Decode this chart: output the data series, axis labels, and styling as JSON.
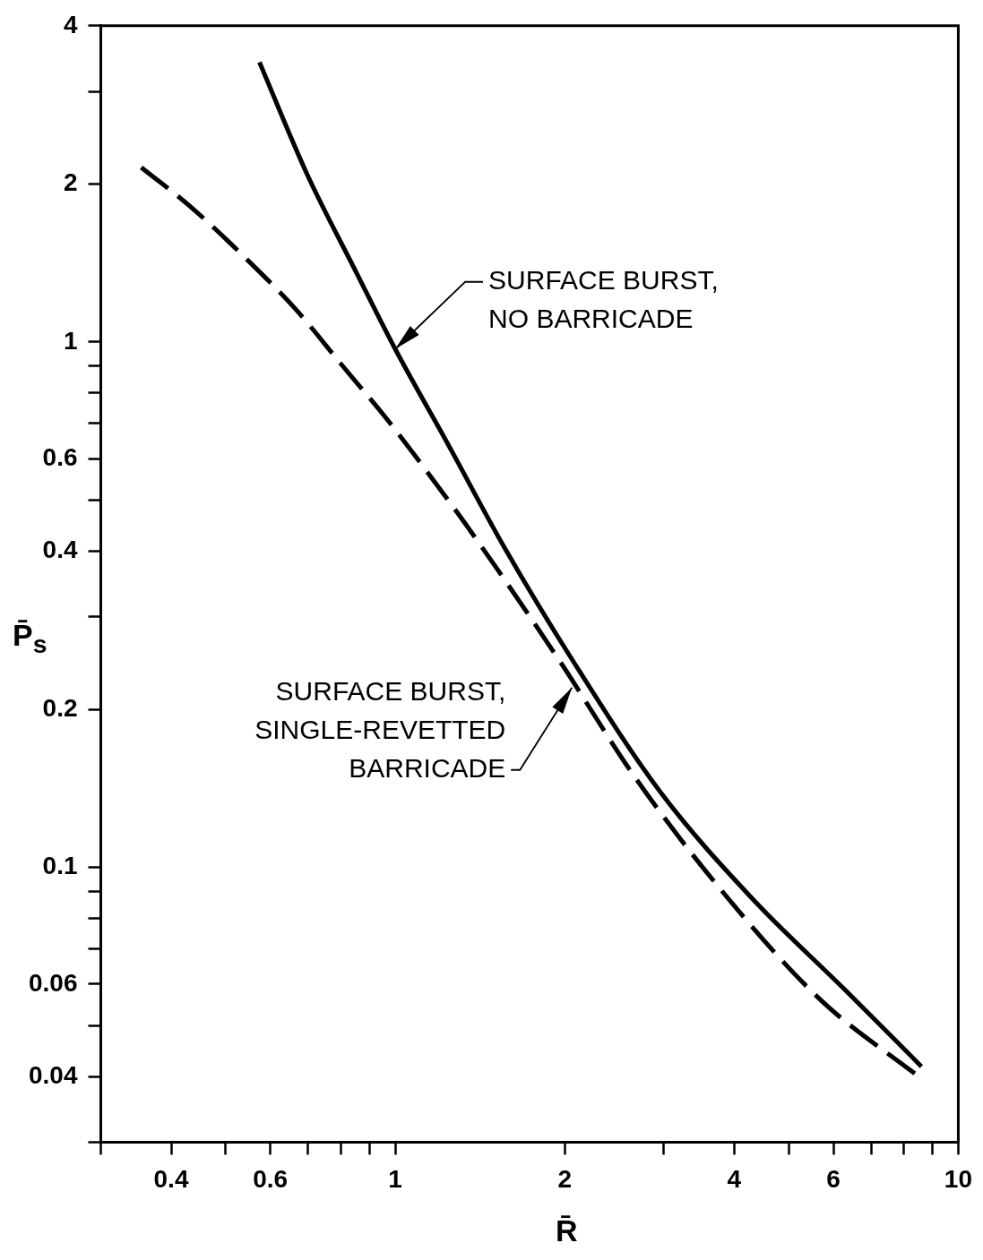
{
  "chart_data": {
    "type": "line",
    "xlabel": "R̄",
    "ylabel": "P̄$_{s}$",
    "log": "xy",
    "grid": false,
    "legend": false,
    "marker": "none",
    "xlim": [
      0.3,
      10
    ],
    "ylim": [
      0.03,
      4
    ],
    "xticks": [
      {
        "value": 0.3,
        "label": null
      },
      {
        "value": 0.4,
        "label": "0.4"
      },
      {
        "value": 0.5,
        "label": null
      },
      {
        "value": 0.6,
        "label": "0.6"
      },
      {
        "value": 0.7,
        "label": null
      },
      {
        "value": 0.8,
        "label": null
      },
      {
        "value": 0.9,
        "label": null
      },
      1,
      2,
      {
        "value": 3,
        "label": null
      },
      4,
      {
        "value": 5,
        "label": null
      },
      6,
      {
        "value": 7,
        "label": null
      },
      {
        "value": 8,
        "label": null
      },
      {
        "value": 9,
        "label": null
      },
      10
    ],
    "yticks": [
      {
        "value": 0.03,
        "label": null
      },
      0.04,
      {
        "value": 0.05,
        "label": null
      },
      0.06,
      {
        "value": 0.07,
        "label": null
      },
      {
        "value": 0.08,
        "label": null
      },
      {
        "value": 0.09,
        "label": null
      },
      0.1,
      0.2,
      {
        "value": 0.3,
        "label": null
      },
      0.4,
      {
        "value": 0.5,
        "label": null
      },
      0.6,
      {
        "value": 0.7,
        "label": null
      },
      {
        "value": 0.8,
        "label": null
      },
      {
        "value": 0.9,
        "label": null
      },
      1,
      2,
      {
        "value": 3,
        "label": null
      },
      4
    ],
    "series": [
      {
        "color": "#000000",
        "line_style": "solid",
        "x": [
          0.574,
          0.697,
          0.855,
          1.0,
          1.24,
          1.57,
          2.06,
          2.96,
          4.33,
          6.24,
          8.6
        ],
        "values": [
          3.41,
          2.09,
          1.35,
          0.97,
          0.64,
          0.403,
          0.249,
          0.139,
          0.0867,
          0.059,
          0.0418
        ]
      },
      {
        "color": "#000000",
        "line_style": "dashed",
        "x": [
          0.354,
          0.433,
          0.544,
          0.668,
          0.8,
          0.97,
          1.16,
          1.39,
          1.95,
          2.66,
          3.81,
          5.69,
          8.5
        ],
        "values": [
          2.15,
          1.81,
          1.44,
          1.15,
          0.91,
          0.71,
          0.552,
          0.423,
          0.249,
          0.149,
          0.09,
          0.056,
          0.04
        ]
      }
    ],
    "annotations": [
      {
        "text": "SURFACE BURST,\nNO BARRICADE",
        "x": 1.0,
        "y": 0.97
      },
      {
        "text": "SURFACE BURST,\nSINGLE-REVETTED\nBARRICADE",
        "x": 2.06,
        "y": 0.22
      }
    ]
  }
}
